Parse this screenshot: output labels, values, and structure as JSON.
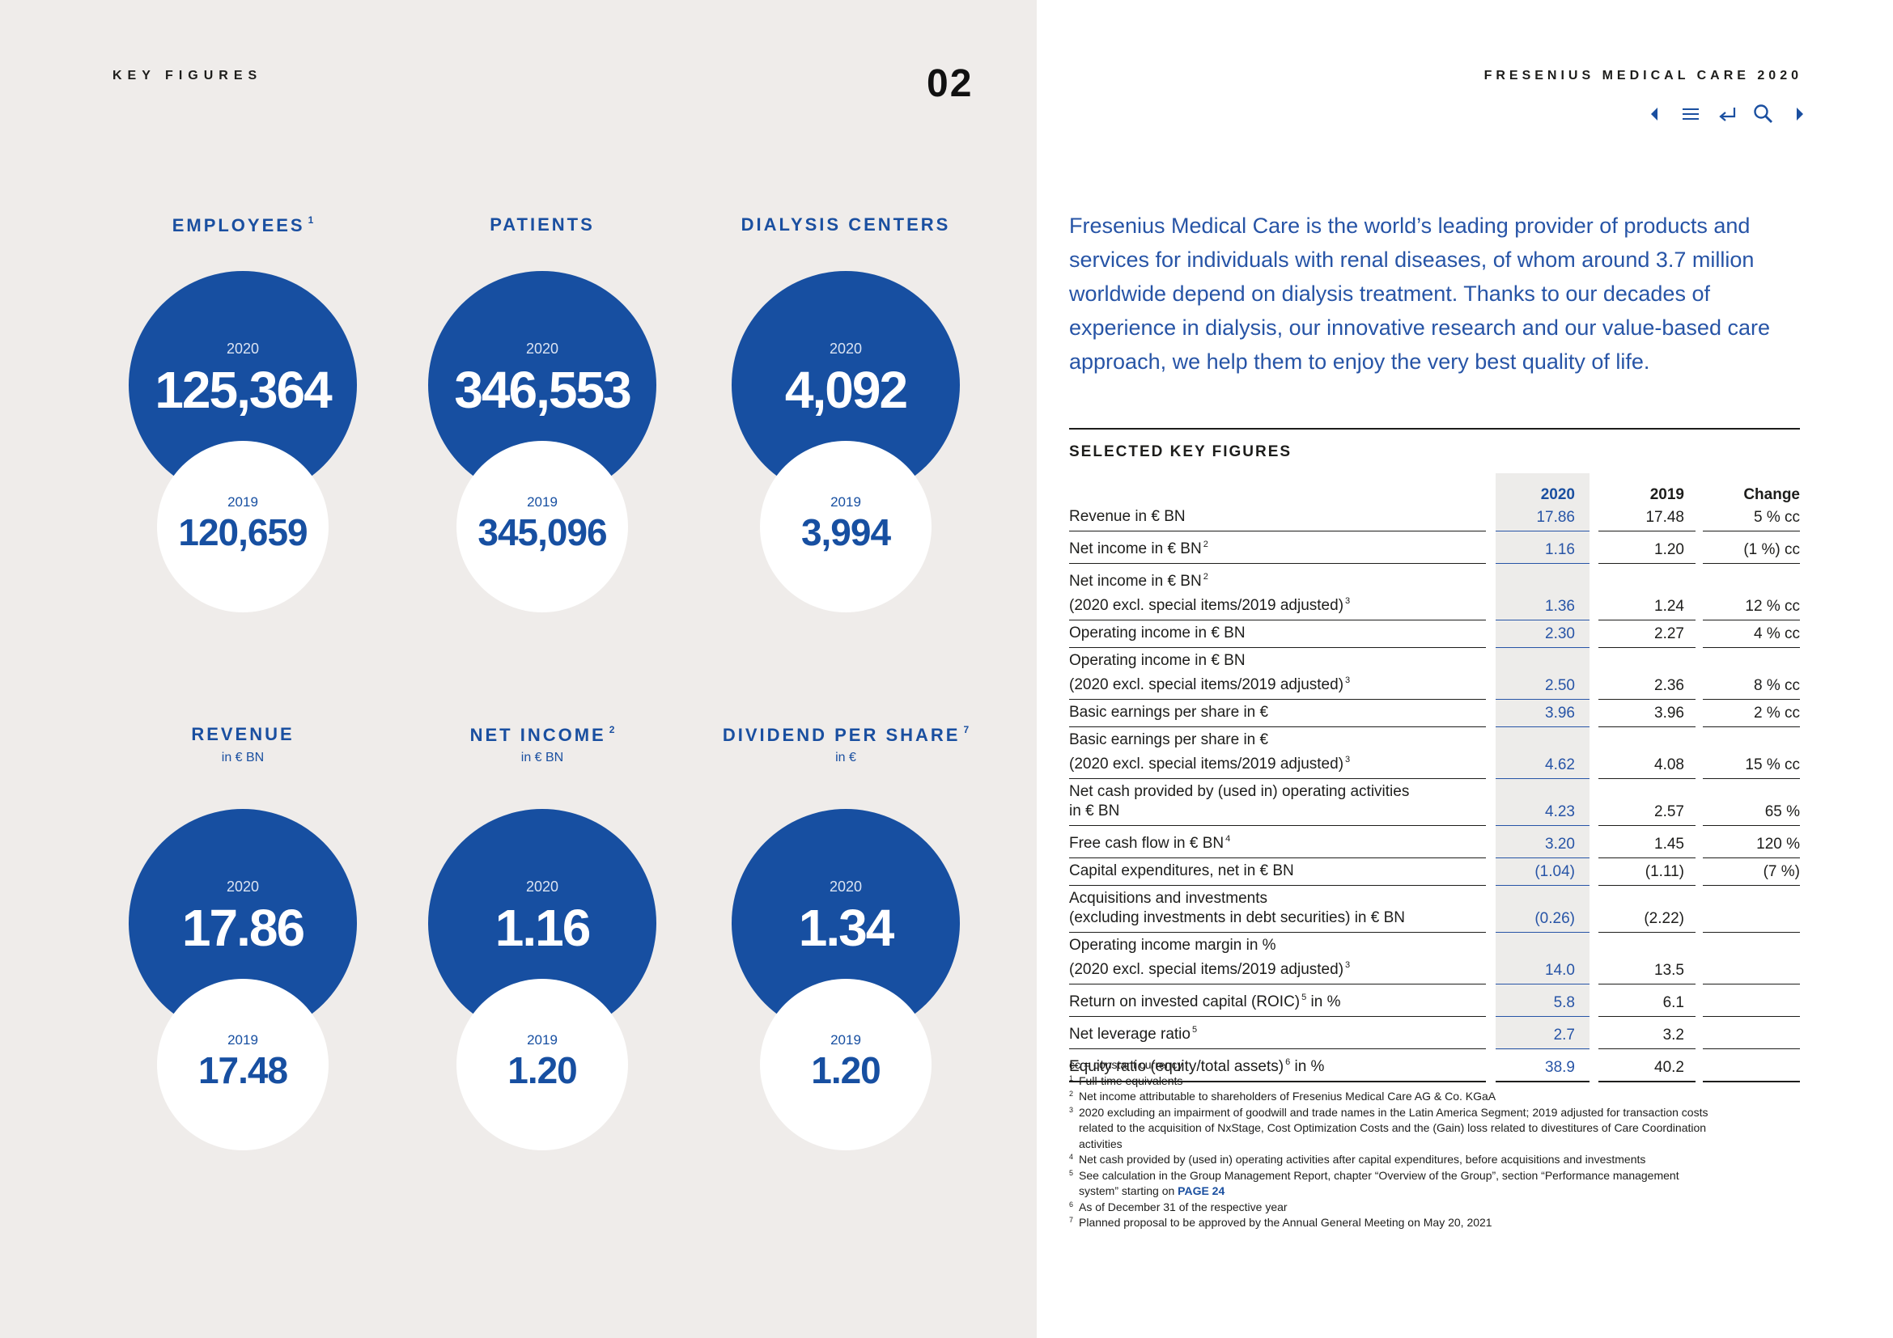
{
  "left": {
    "section_label": "KEY FIGURES",
    "page_number": "02",
    "tiles": [
      {
        "title": "EMPLOYEES",
        "sup": "1",
        "sub": "",
        "year_current": "2020",
        "value_current": "125,364",
        "year_prior": "2019",
        "value_prior": "120,659"
      },
      {
        "title": "PATIENTS",
        "sup": "",
        "sub": "",
        "year_current": "2020",
        "value_current": "346,553",
        "year_prior": "2019",
        "value_prior": "345,096"
      },
      {
        "title": "DIALYSIS CENTERS",
        "sup": "",
        "sub": "",
        "year_current": "2020",
        "value_current": "4,092",
        "year_prior": "2019",
        "value_prior": "3,994"
      },
      {
        "title": "REVENUE",
        "sup": "",
        "sub": "in € BN",
        "year_current": "2020",
        "value_current": "17.86",
        "year_prior": "2019",
        "value_prior": "17.48"
      },
      {
        "title": "NET INCOME",
        "sup": "2",
        "sub": "in € BN",
        "year_current": "2020",
        "value_current": "1.16",
        "year_prior": "2019",
        "value_prior": "1.20"
      },
      {
        "title": "DIVIDEND PER SHARE",
        "sup": "7",
        "sub": "in €",
        "year_current": "2020",
        "value_current": "1.34",
        "year_prior": "2019",
        "value_prior": "1.20"
      }
    ]
  },
  "right": {
    "brand": "FRESENIUS MEDICAL CARE 2020",
    "nav": {
      "icons": [
        "previous-page-icon",
        "menu-icon",
        "back-icon",
        "search-icon",
        "next-page-icon"
      ]
    },
    "intro": "Fresenius Medical Care is the world’s leading provider of products and services for individuals with renal diseases, of whom around 3.7 million worldwide depend on dialysis treatment. Thanks to our decades of experience in dialysis, our innovative research and our value-based care approach, we help them to enjoy the very best quality of life.",
    "key_figures": {
      "heading": "SELECTED KEY FIGURES",
      "headers": {
        "label": "",
        "y2020": "2020",
        "y2019": "2019",
        "change": "Change"
      },
      "rows": [
        {
          "l1": "Revenue in € BN",
          "l1_sup": "",
          "l2": "",
          "l2_sup": "",
          "v2020": "17.86",
          "v2019": "17.48",
          "change": "5 % cc"
        },
        {
          "l1": "Net income in € BN",
          "l1_sup": "2",
          "l2": "",
          "l2_sup": "",
          "v2020": "1.16",
          "v2019": "1.20",
          "change": "(1 %) cc"
        },
        {
          "l1": "Net income in € BN",
          "l1_sup": "2",
          "l2": "(2020 excl. special items/2019 adjusted)",
          "l2_sup": "3",
          "v2020": "1.36",
          "v2019": "1.24",
          "change": "12 % cc"
        },
        {
          "l1": "Operating income in € BN",
          "l1_sup": "",
          "l2": "",
          "l2_sup": "",
          "v2020": "2.30",
          "v2019": "2.27",
          "change": "4 % cc"
        },
        {
          "l1": "Operating income in € BN",
          "l1_sup": "",
          "l2": "(2020 excl. special items/2019 adjusted)",
          "l2_sup": "3",
          "v2020": "2.50",
          "v2019": "2.36",
          "change": "8 % cc"
        },
        {
          "l1": "Basic earnings per share in €",
          "l1_sup": "",
          "l2": "",
          "l2_sup": "",
          "v2020": "3.96",
          "v2019": "3.96",
          "change": "2 % cc"
        },
        {
          "l1": "Basic earnings per share in €",
          "l1_sup": "",
          "l2": "(2020 excl. special items/2019 adjusted)",
          "l2_sup": "3",
          "v2020": "4.62",
          "v2019": "4.08",
          "change": "15 % cc"
        },
        {
          "l1": "Net cash provided by (used in) operating activities",
          "l1_sup": "",
          "l2": "in € BN",
          "l2_sup": "",
          "v2020": "4.23",
          "v2019": "2.57",
          "change": "65 %"
        },
        {
          "l1": "Free cash flow in € BN",
          "l1_sup": "4",
          "l2": "",
          "l2_sup": "",
          "v2020": "3.20",
          "v2019": "1.45",
          "change": "120 %"
        },
        {
          "l1": "Capital expenditures, net in € BN",
          "l1_sup": "",
          "l2": "",
          "l2_sup": "",
          "v2020": "(1.04)",
          "v2019": "(1.11)",
          "change": "(7 %)"
        },
        {
          "l1": "Acquisitions and investments",
          "l1_sup": "",
          "l2": "(excluding investments in debt securities) in € BN",
          "l2_sup": "",
          "v2020": "(0.26)",
          "v2019": "(2.22)",
          "change": ""
        },
        {
          "l1": "Operating income margin in %",
          "l1_sup": "",
          "l2": "(2020 excl. special items/2019 adjusted)",
          "l2_sup": "3",
          "v2020": "14.0",
          "v2019": "13.5",
          "change": ""
        },
        {
          "l1": "Return on invested capital (ROIC)",
          "l1_sup": "5",
          "l1_tail": " in %",
          "l2": "",
          "l2_sup": "",
          "v2020": "5.8",
          "v2019": "6.1",
          "change": ""
        },
        {
          "l1": "Net leverage ratio",
          "l1_sup": "5",
          "l2": "",
          "l2_sup": "",
          "v2020": "2.7",
          "v2019": "3.2",
          "change": ""
        },
        {
          "l1": "Equity ratio (equity/total assets)",
          "l1_sup": "6",
          "l1_tail": " in %",
          "l2": "",
          "l2_sup": "",
          "v2020": "38.9",
          "v2019": "40.2",
          "change": ""
        }
      ]
    },
    "footnotes": {
      "cc": "cc = constant currency",
      "n1": "Full-time equivalents",
      "n2": "Net income attributable to shareholders of Fresenius Medical Care AG & Co. KGaA",
      "n3a": "2020 excluding an impairment of goodwill and trade names in the Latin America Segment; 2019 adjusted for transaction costs",
      "n3b": "related to the acquisition of NxStage, Cost Optimization Costs and the (Gain) loss related to divestitures of Care Coordination",
      "n3c": "activities",
      "n4": "Net cash provided by (used in) operating activities after capital expenditures, before acquisitions and investments",
      "n5a": "See calculation in the Group Management Report, chapter “Overview of the Group”, section “Performance management",
      "n5b_pre": "system” starting on ",
      "n5b_link": "PAGE 24",
      "n6": "As of December 31 of the respective year",
      "n7": "Planned proposal to be approved by the Annual General Meeting on May 20, 2021"
    }
  }
}
